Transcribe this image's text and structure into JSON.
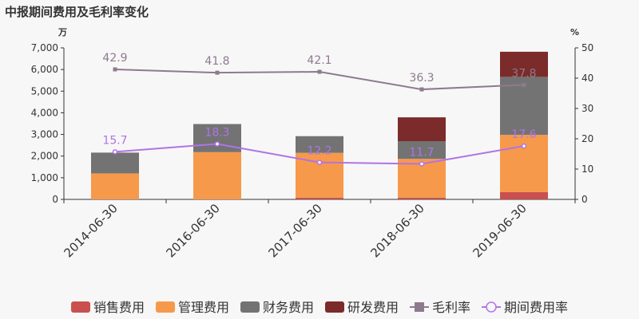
{
  "chart_data": {
    "type": "bar",
    "title": "中报期间费用及毛利率变化",
    "left_unit": "万",
    "right_unit": "%",
    "categories": [
      "2014-06-30",
      "2016-06-30",
      "2017-06-30",
      "2018-06-30",
      "2019-06-30"
    ],
    "ylim_left": [
      0,
      7000
    ],
    "yticks_left": [
      "0",
      "1,000",
      "2,000",
      "3,000",
      "4,000",
      "5,000",
      "6,000",
      "7,000"
    ],
    "ylim_right": [
      0,
      50
    ],
    "yticks_right": [
      "0",
      "10",
      "20",
      "30",
      "40",
      "50"
    ],
    "stacked_series": [
      {
        "name": "销售费用",
        "color": "#c9504e",
        "values": [
          0,
          0,
          80,
          80,
          340
        ]
      },
      {
        "name": "管理费用",
        "color": "#f7994a",
        "values": [
          1200,
          2180,
          2070,
          1790,
          2640
        ]
      },
      {
        "name": "财务费用",
        "color": "#737373",
        "values": [
          960,
          1300,
          770,
          820,
          2680
        ]
      },
      {
        "name": "研发费用",
        "color": "#7b2b2a",
        "values": [
          0,
          0,
          0,
          1100,
          1160
        ]
      }
    ],
    "line_series": [
      {
        "name": "毛利率",
        "color": "#8e7a8e",
        "marker": "square",
        "values": [
          42.9,
          41.8,
          42.1,
          36.3,
          37.8
        ],
        "labels": [
          "42.9",
          "41.8",
          "42.1",
          "36.3",
          "37.8"
        ]
      },
      {
        "name": "期间费用率",
        "color": "#b073e6",
        "marker": "circle",
        "values": [
          15.7,
          18.3,
          12.2,
          11.7,
          17.6
        ],
        "labels": [
          "15.7",
          "18.3",
          "12.2",
          "11.7",
          "17.6"
        ]
      }
    ],
    "legend_position": "bottom",
    "grid": false
  }
}
